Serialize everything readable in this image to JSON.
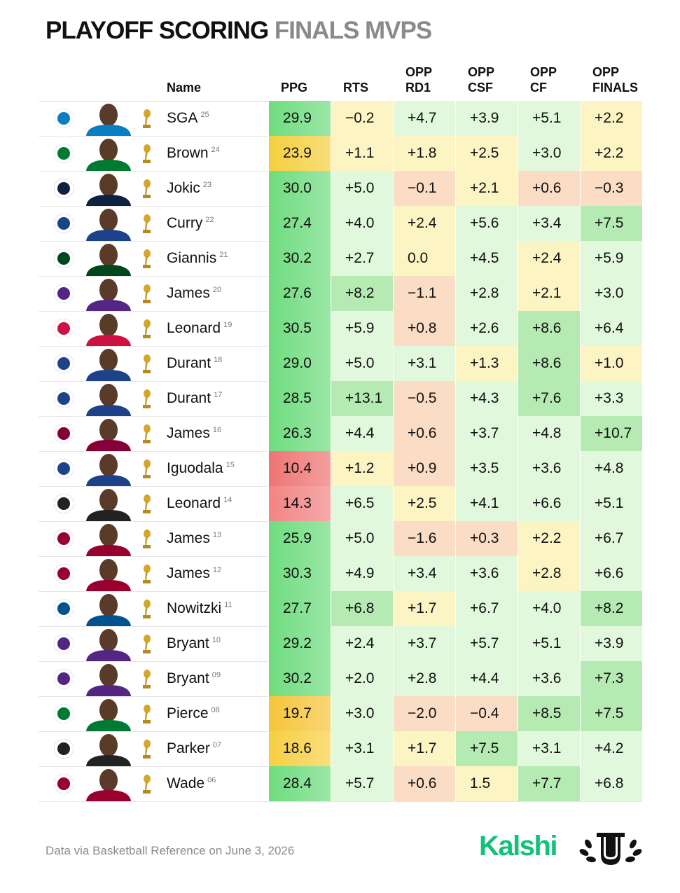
{
  "header": {
    "title": "PLAYOFF SCORING",
    "title_accent": "FINALS MVPS"
  },
  "table": {
    "columns": [
      [
        "Name"
      ],
      [
        "PPG"
      ],
      [
        "RTS"
      ],
      [
        "OPP",
        "RD1"
      ],
      [
        "OPP",
        "CSF"
      ],
      [
        "OPP",
        "CF"
      ],
      [
        "OPP",
        "FINALS"
      ]
    ],
    "rows": [
      {
        "name": "SGA",
        "year": "25",
        "logo_color": "#0a7ec2",
        "cells": [
          "29.9",
          "−0.2",
          "+4.7",
          "+3.9",
          "+5.1",
          "+2.2"
        ],
        "colors": [
          "#6fdc7f",
          "#fdf4c4",
          "#e2f8dd",
          "#e2f8dd",
          "#e2f8dd",
          "#fdf4c4"
        ]
      },
      {
        "name": "Brown",
        "year": "24",
        "logo_color": "#007a33",
        "cells": [
          "23.9",
          "+1.1",
          "+1.8",
          "+2.5",
          "+3.0",
          "+2.2"
        ],
        "colors": [
          "#f4cf3f",
          "#fdf4c4",
          "#fdf4c4",
          "#fdf4c4",
          "#e2f8dd",
          "#fdf4c4"
        ]
      },
      {
        "name": "Jokic",
        "year": "23",
        "logo_color": "#0e2240",
        "cells": [
          "30.0",
          "+5.0",
          "−0.1",
          "+2.1",
          "+0.6",
          "−0.3"
        ],
        "colors": [
          "#6fdc7f",
          "#e2f8dd",
          "#fbdcc4",
          "#fdf4c4",
          "#fbdcc4",
          "#fbdcc4"
        ]
      },
      {
        "name": "Curry",
        "year": "22",
        "logo_color": "#1d428a",
        "cells": [
          "27.4",
          "+4.0",
          "+2.4",
          "+5.6",
          "+3.4",
          "+7.5"
        ],
        "colors": [
          "#6fdc7f",
          "#e2f8dd",
          "#fdf4c4",
          "#e2f8dd",
          "#e2f8dd",
          "#b5ebb3"
        ]
      },
      {
        "name": "Giannis",
        "year": "21",
        "logo_color": "#00471b",
        "cells": [
          "30.2",
          "+2.7",
          "0.0",
          "+4.5",
          "+2.4",
          "+5.9"
        ],
        "colors": [
          "#6fdc7f",
          "#e2f8dd",
          "#fdf4c4",
          "#e2f8dd",
          "#fdf4c4",
          "#e2f8dd"
        ]
      },
      {
        "name": "James",
        "year": "20",
        "logo_color": "#552583",
        "cells": [
          "27.6",
          "+8.2",
          "−1.1",
          "+2.8",
          "+2.1",
          "+3.0"
        ],
        "colors": [
          "#6fdc7f",
          "#b5ebb3",
          "#fbdcc4",
          "#e2f8dd",
          "#fdf4c4",
          "#e2f8dd"
        ]
      },
      {
        "name": "Leonard",
        "year": "19",
        "logo_color": "#ce1141",
        "cells": [
          "30.5",
          "+5.9",
          "+0.8",
          "+2.6",
          "+8.6",
          "+6.4"
        ],
        "colors": [
          "#6fdc7f",
          "#e2f8dd",
          "#fbdcc4",
          "#e2f8dd",
          "#b5ebb3",
          "#e2f8dd"
        ]
      },
      {
        "name": "Durant",
        "year": "18",
        "logo_color": "#1d428a",
        "cells": [
          "29.0",
          "+5.0",
          "+3.1",
          "+1.3",
          "+8.6",
          "+1.0"
        ],
        "colors": [
          "#6fdc7f",
          "#e2f8dd",
          "#e2f8dd",
          "#fdf4c4",
          "#b5ebb3",
          "#fdf4c4"
        ]
      },
      {
        "name": "Durant",
        "year": "17",
        "logo_color": "#1d428a",
        "cells": [
          "28.5",
          "+13.1",
          "−0.5",
          "+4.3",
          "+7.6",
          "+3.3"
        ],
        "colors": [
          "#6fdc7f",
          "#b5ebb3",
          "#fbdcc4",
          "#e2f8dd",
          "#b5ebb3",
          "#e2f8dd"
        ]
      },
      {
        "name": "James",
        "year": "16",
        "logo_color": "#860038",
        "cells": [
          "26.3",
          "+4.4",
          "+0.6",
          "+3.7",
          "+4.8",
          "+10.7"
        ],
        "colors": [
          "#6fdc7f",
          "#e2f8dd",
          "#fbdcc4",
          "#e2f8dd",
          "#e2f8dd",
          "#b5ebb3"
        ]
      },
      {
        "name": "Iguodala",
        "year": "15",
        "logo_color": "#1d428a",
        "cells": [
          "10.4",
          "+1.2",
          "+0.9",
          "+3.5",
          "+3.6",
          "+4.8"
        ],
        "colors": [
          "#ef7474",
          "#fdf4c4",
          "#fbdcc4",
          "#e2f8dd",
          "#e2f8dd",
          "#e2f8dd"
        ]
      },
      {
        "name": "Leonard",
        "year": "14",
        "logo_color": "#222222",
        "cells": [
          "14.3",
          "+6.5",
          "+2.5",
          "+4.1",
          "+6.6",
          "+5.1"
        ],
        "colors": [
          "#f28484",
          "#e2f8dd",
          "#fdf4c4",
          "#e2f8dd",
          "#e2f8dd",
          "#e2f8dd"
        ]
      },
      {
        "name": "James",
        "year": "13",
        "logo_color": "#98002e",
        "cells": [
          "25.9",
          "+5.0",
          "−1.6",
          "+0.3",
          "+2.2",
          "+6.7"
        ],
        "colors": [
          "#6fdc7f",
          "#e2f8dd",
          "#fbdcc4",
          "#fbdcc4",
          "#fdf4c4",
          "#e2f8dd"
        ]
      },
      {
        "name": "James",
        "year": "12",
        "logo_color": "#98002e",
        "cells": [
          "30.3",
          "+4.9",
          "+3.4",
          "+3.6",
          "+2.8",
          "+6.6"
        ],
        "colors": [
          "#6fdc7f",
          "#e2f8dd",
          "#e2f8dd",
          "#e2f8dd",
          "#fdf4c4",
          "#e2f8dd"
        ]
      },
      {
        "name": "Nowitzki",
        "year": "11",
        "logo_color": "#00538c",
        "cells": [
          "27.7",
          "+6.8",
          "+1.7",
          "+6.7",
          "+4.0",
          "+8.2"
        ],
        "colors": [
          "#6fdc7f",
          "#b5ebb3",
          "#fdf4c4",
          "#e2f8dd",
          "#e2f8dd",
          "#b5ebb3"
        ]
      },
      {
        "name": "Bryant",
        "year": "10",
        "logo_color": "#552583",
        "cells": [
          "29.2",
          "+2.4",
          "+3.7",
          "+5.7",
          "+5.1",
          "+3.9"
        ],
        "colors": [
          "#6fdc7f",
          "#e2f8dd",
          "#e2f8dd",
          "#e2f8dd",
          "#e2f8dd",
          "#e2f8dd"
        ]
      },
      {
        "name": "Bryant",
        "year": "09",
        "logo_color": "#552583",
        "cells": [
          "30.2",
          "+2.0",
          "+2.8",
          "+4.4",
          "+3.6",
          "+7.3"
        ],
        "colors": [
          "#6fdc7f",
          "#e2f8dd",
          "#e2f8dd",
          "#e2f8dd",
          "#e2f8dd",
          "#b5ebb3"
        ]
      },
      {
        "name": "Pierce",
        "year": "08",
        "logo_color": "#007a33",
        "cells": [
          "19.7",
          "+3.0",
          "−2.0",
          "−0.4",
          "+8.5",
          "+7.5"
        ],
        "colors": [
          "#f5c53a",
          "#e2f8dd",
          "#fbdcc4",
          "#fbdcc4",
          "#b5ebb3",
          "#b5ebb3"
        ]
      },
      {
        "name": "Parker",
        "year": "07",
        "logo_color": "#222222",
        "cells": [
          "18.6",
          "+3.1",
          "+1.7",
          "+7.5",
          "+3.1",
          "+4.2"
        ],
        "colors": [
          "#f7cf43",
          "#e2f8dd",
          "#fdf4c4",
          "#b5ebb3",
          "#e2f8dd",
          "#e2f8dd"
        ]
      },
      {
        "name": "Wade",
        "year": "06",
        "logo_color": "#98002e",
        "cells": [
          "28.4",
          "+5.7",
          "+0.6",
          "1.5",
          "+7.7",
          "+6.8"
        ],
        "colors": [
          "#6fdc7f",
          "#e2f8dd",
          "#fbdcc4",
          "#fdf4c4",
          "#b5ebb3",
          "#e2f8dd"
        ]
      }
    ]
  },
  "footer": {
    "source": "Data via Basketball Reference on June 3, 2026",
    "brand": "Kalshi"
  }
}
